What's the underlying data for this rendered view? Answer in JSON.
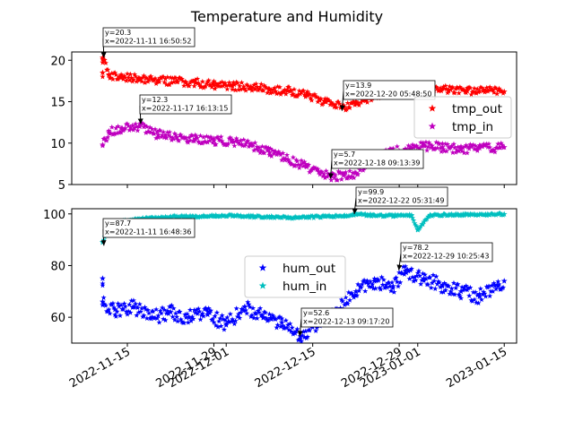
{
  "figure": {
    "title": "Temperature and Humidity"
  },
  "chart_data": [
    {
      "type": "scatter",
      "title": "",
      "xlabel": "",
      "ylabel": "",
      "x_type": "date",
      "xlim": [
        "2022-11-06",
        "2023-01-17"
      ],
      "ylim": [
        5,
        21
      ],
      "yticks": [
        5,
        10,
        15,
        20
      ],
      "xticks": [
        "2022-11-15",
        "2022-11-29",
        "2022-12-01",
        "2022-12-15",
        "2022-12-29",
        "2023-01-01",
        "2023-01-15"
      ],
      "marker": "star",
      "legend": {
        "position": "center-right"
      },
      "series": [
        {
          "name": "tmp_out",
          "color": "#ff0000",
          "points": [
            [
              "2022-11-11",
              18.5
            ],
            [
              "2022-11-11",
              20.3
            ],
            [
              "2022-11-12",
              18.2
            ],
            [
              "2022-11-14",
              17.9
            ],
            [
              "2022-11-17",
              17.8
            ],
            [
              "2022-11-20",
              17.6
            ],
            [
              "2022-11-23",
              17.4
            ],
            [
              "2022-11-26",
              17.3
            ],
            [
              "2022-11-29",
              17.0
            ],
            [
              "2022-12-02",
              16.9
            ],
            [
              "2022-12-05",
              16.8
            ],
            [
              "2022-12-08",
              16.5
            ],
            [
              "2022-12-11",
              16.3
            ],
            [
              "2022-12-14",
              15.8
            ],
            [
              "2022-12-17",
              15.0
            ],
            [
              "2022-12-20",
              14.3
            ],
            [
              "2022-12-22",
              14.8
            ],
            [
              "2022-12-25",
              15.8
            ],
            [
              "2022-12-28",
              16.2
            ],
            [
              "2022-12-31",
              16.5
            ],
            [
              "2023-01-03",
              16.5
            ],
            [
              "2023-01-06",
              16.4
            ],
            [
              "2023-01-09",
              16.3
            ],
            [
              "2023-01-12",
              16.3
            ],
            [
              "2023-01-15",
              16.2
            ]
          ]
        },
        {
          "name": "tmp_in",
          "color": "#bf00bf",
          "points": [
            [
              "2022-11-11",
              9.8
            ],
            [
              "2022-11-12",
              11.3
            ],
            [
              "2022-11-14",
              11.8
            ],
            [
              "2022-11-17",
              12.0
            ],
            [
              "2022-11-20",
              11.0
            ],
            [
              "2022-11-23",
              10.7
            ],
            [
              "2022-11-26",
              10.5
            ],
            [
              "2022-11-29",
              10.3
            ],
            [
              "2022-12-02",
              10.2
            ],
            [
              "2022-12-05",
              9.7
            ],
            [
              "2022-12-08",
              8.9
            ],
            [
              "2022-12-11",
              8.0
            ],
            [
              "2022-12-14",
              7.2
            ],
            [
              "2022-12-16",
              6.5
            ],
            [
              "2022-12-18",
              6.0
            ],
            [
              "2022-12-20",
              6.1
            ],
            [
              "2022-12-22",
              6.4
            ],
            [
              "2022-12-24",
              7.8
            ],
            [
              "2022-12-27",
              8.8
            ],
            [
              "2022-12-30",
              9.3
            ],
            [
              "2023-01-02",
              9.7
            ],
            [
              "2023-01-05",
              9.5
            ],
            [
              "2023-01-08",
              9.3
            ],
            [
              "2023-01-11",
              9.4
            ],
            [
              "2023-01-15",
              9.5
            ]
          ]
        }
      ],
      "annotations": [
        {
          "y": "20.3",
          "x": "2022-11-11 16:50:52",
          "lines": [
            "y=20.3",
            "x=2022-11-11 16:50:52"
          ]
        },
        {
          "y": "12.3",
          "x": "2022-11-17 16:13:15",
          "lines": [
            "y=12.3",
            "x=2022-11-17 16:13:15"
          ]
        },
        {
          "y": "13.9",
          "x": "2022-12-20 05:48:50",
          "lines": [
            "y=13.9",
            "x=2022-12-20 05:48:50"
          ]
        },
        {
          "y": "5.7",
          "x": "2022-12-18 09:13:39",
          "lines": [
            "y=5.7",
            "x=2022-12-18 09:13:39"
          ]
        }
      ]
    },
    {
      "type": "scatter",
      "title": "",
      "xlabel": "",
      "ylabel": "",
      "x_type": "date",
      "xlim": [
        "2022-11-06",
        "2023-01-17"
      ],
      "ylim": [
        50,
        102
      ],
      "yticks": [
        60,
        80,
        100
      ],
      "xticks": [
        "2022-11-15",
        "2022-11-29",
        "2022-12-01",
        "2022-12-15",
        "2022-12-29",
        "2023-01-01",
        "2023-01-15"
      ],
      "xtick_labels": [
        "2022-11-15",
        "2022-11-29",
        "2022-12-01",
        "2022-12-15",
        "2022-12-29",
        "2023-01-01",
        "2023-01-15"
      ],
      "marker": "star",
      "legend": {
        "position": "center"
      },
      "series": [
        {
          "name": "hum_out",
          "color": "#0000ff",
          "points": [
            [
              "2022-11-11",
              75.0
            ],
            [
              "2022-11-11",
              66.0
            ],
            [
              "2022-11-13",
              63.0
            ],
            [
              "2022-11-16",
              64.0
            ],
            [
              "2022-11-19",
              60.0
            ],
            [
              "2022-11-22",
              62.0
            ],
            [
              "2022-11-25",
              60.0
            ],
            [
              "2022-11-28",
              61.0
            ],
            [
              "2022-12-01",
              57.0
            ],
            [
              "2022-12-04",
              64.0
            ],
            [
              "2022-12-07",
              60.0
            ],
            [
              "2022-12-10",
              58.0
            ],
            [
              "2022-12-13",
              52.6
            ],
            [
              "2022-12-16",
              58.0
            ],
            [
              "2022-12-19",
              63.0
            ],
            [
              "2022-12-22",
              70.0
            ],
            [
              "2022-12-25",
              74.0
            ],
            [
              "2022-12-28",
              72.0
            ],
            [
              "2022-12-30",
              78.0
            ],
            [
              "2023-01-02",
              75.0
            ],
            [
              "2023-01-05",
              72.0
            ],
            [
              "2023-01-08",
              70.0
            ],
            [
              "2023-01-11",
              68.0
            ],
            [
              "2023-01-14",
              72.0
            ],
            [
              "2023-01-15",
              74.0
            ]
          ]
        },
        {
          "name": "hum_in",
          "color": "#00bfbf",
          "points": [
            [
              "2022-11-11",
              89.0
            ],
            [
              "2022-11-12",
              94.0
            ],
            [
              "2022-11-14",
              97.0
            ],
            [
              "2022-11-17",
              98.0
            ],
            [
              "2022-11-20",
              98.5
            ],
            [
              "2022-11-23",
              99.0
            ],
            [
              "2022-11-26",
              99.0
            ],
            [
              "2022-11-29",
              99.2
            ],
            [
              "2022-12-02",
              99.3
            ],
            [
              "2022-12-05",
              99.0
            ],
            [
              "2022-12-08",
              98.8
            ],
            [
              "2022-12-11",
              98.5
            ],
            [
              "2022-12-14",
              98.7
            ],
            [
              "2022-12-17",
              99.0
            ],
            [
              "2022-12-20",
              99.2
            ],
            [
              "2022-12-22",
              99.9
            ],
            [
              "2022-12-25",
              99.4
            ],
            [
              "2022-12-28",
              99.3
            ],
            [
              "2022-12-31",
              99.5
            ],
            [
              "2023-01-01",
              94.0
            ],
            [
              "2023-01-03",
              99.5
            ],
            [
              "2023-01-06",
              99.6
            ],
            [
              "2023-01-09",
              99.7
            ],
            [
              "2023-01-12",
              99.8
            ],
            [
              "2023-01-15",
              99.9
            ]
          ]
        }
      ],
      "annotations": [
        {
          "y": "87.7",
          "x": "2022-11-11 16:48:36",
          "lines": [
            "y=87.7",
            "x=2022-11-11 16:48:36"
          ]
        },
        {
          "y": "99.9",
          "x": "2022-12-22 05:31:49",
          "lines": [
            "y=99.9",
            "x=2022-12-22 05:31:49"
          ]
        },
        {
          "y": "78.2",
          "x": "2022-12-29 10:25:43",
          "lines": [
            "y=78.2",
            "x=2022-12-29 10:25:43"
          ]
        },
        {
          "y": "52.6",
          "x": "2022-12-13 09:17:20",
          "lines": [
            "y=52.6",
            "x=2022-12-13 09:17:20"
          ]
        }
      ]
    }
  ]
}
